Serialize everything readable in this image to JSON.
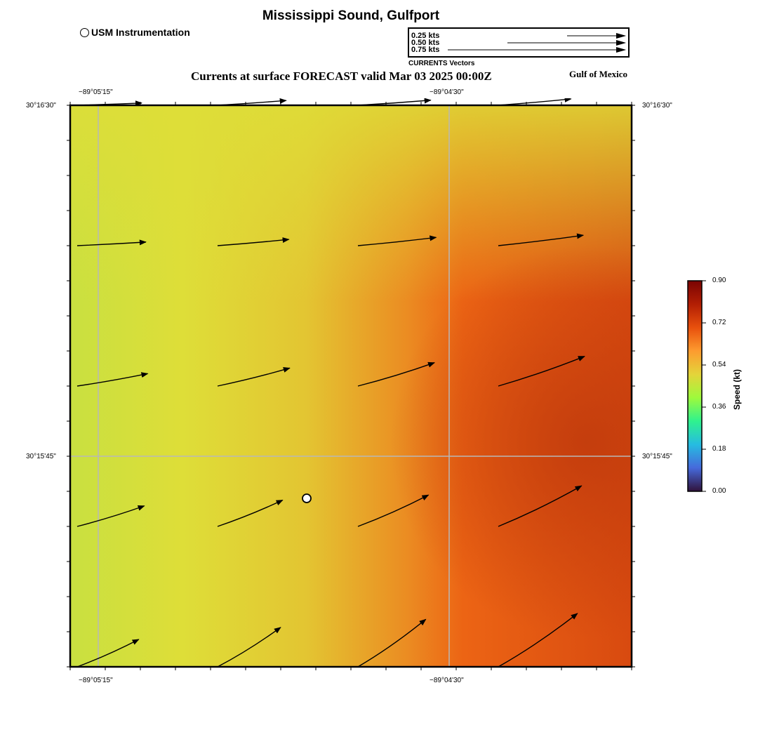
{
  "header": {
    "title": "Mississippi Sound, Gulfport",
    "marker_legend": "USM Instrumentation",
    "forecast_title": "Currents at surface FORECAST valid Mar 03 2025 00:00Z",
    "region_label": "Gulf of Mexico"
  },
  "footer": {
    "title": "Mississippi Sound, Gulfport"
  },
  "vector_legend": {
    "caption": "CURRENTS Vectors",
    "entries": [
      {
        "label": "0.25 kts",
        "speed": 0.25
      },
      {
        "label": "0.50 kts",
        "speed": 0.5
      },
      {
        "label": "0.75 kts",
        "speed": 0.75
      }
    ]
  },
  "map": {
    "lon_labels": [
      "−89°05'15\"",
      "−89°04'30\""
    ],
    "lat_labels": [
      "30°16'30\"",
      "30°15'45\""
    ],
    "station": {
      "name": "USM Instrumentation"
    },
    "vectors": [
      [
        {
          "dir": 88,
          "speed": 0.46
        },
        {
          "dir": 86,
          "speed": 0.49
        },
        {
          "dir": 86,
          "speed": 0.52
        },
        {
          "dir": 85,
          "speed": 0.52
        }
      ],
      [
        {
          "dir": 87,
          "speed": 0.49
        },
        {
          "dir": 85,
          "speed": 0.51
        },
        {
          "dir": 84,
          "speed": 0.56
        },
        {
          "dir": 83,
          "speed": 0.61
        }
      ],
      [
        {
          "dir": 80,
          "speed": 0.51
        },
        {
          "dir": 76,
          "speed": 0.53
        },
        {
          "dir": 73,
          "speed": 0.57
        },
        {
          "dir": 71,
          "speed": 0.65
        }
      ],
      [
        {
          "dir": 73,
          "speed": 0.5
        },
        {
          "dir": 68,
          "speed": 0.5
        },
        {
          "dir": 66,
          "speed": 0.55
        },
        {
          "dir": 64,
          "speed": 0.66
        }
      ],
      [
        {
          "dir": 66,
          "speed": 0.48
        },
        {
          "dir": 58,
          "speed": 0.53
        },
        {
          "dir": 55,
          "speed": 0.59
        },
        {
          "dir": 56,
          "speed": 0.68
        }
      ]
    ]
  },
  "colorbar": {
    "title": "Speed (kt)",
    "ticks": [
      "0.90",
      "0.72",
      "0.54",
      "0.36",
      "0.18",
      "0.00"
    ],
    "colors": [
      "#30123b",
      "#4669db",
      "#26bce1",
      "#2ff28e",
      "#9efa3c",
      "#e4d43a",
      "#fd9b2f",
      "#e8500d",
      "#b21e04",
      "#7a0403"
    ]
  }
}
